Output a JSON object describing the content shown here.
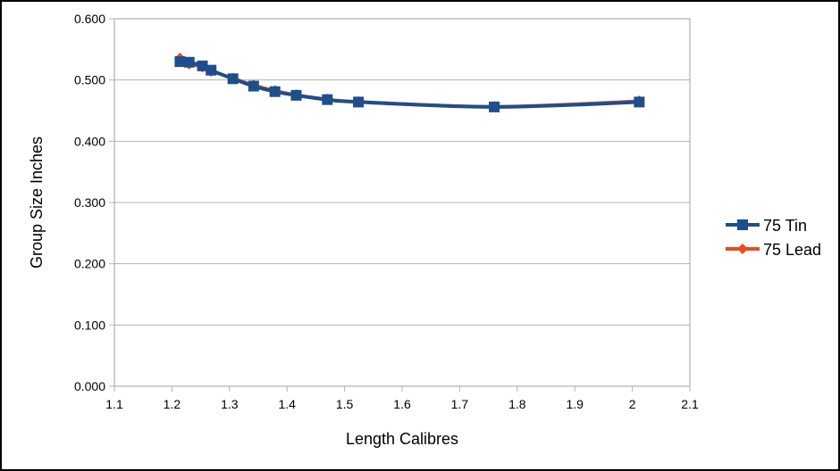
{
  "chart_data": {
    "type": "line",
    "title": "",
    "xlabel": "Length Calibres",
    "ylabel": "Group Size Inches",
    "xlim": [
      1.1,
      2.1
    ],
    "ylim": [
      0.0,
      0.6
    ],
    "x_ticks": [
      "1.1",
      "1.2",
      "1.3",
      "1.4",
      "1.5",
      "1.6",
      "1.7",
      "1.8",
      "1.9",
      "2",
      "2.1"
    ],
    "y_ticks": [
      "0.000",
      "0.100",
      "0.200",
      "0.300",
      "0.400",
      "0.500",
      "0.600"
    ],
    "grid": "horizontal",
    "legend_position": "right",
    "series": [
      {
        "name": "75 Tin",
        "color": "#1f4e8c",
        "marker": "square",
        "x": [
          1.214,
          1.23,
          1.253,
          1.268,
          1.306,
          1.342,
          1.379,
          1.416,
          1.47,
          1.524,
          1.76,
          2.012
        ],
        "y": [
          0.53,
          0.529,
          0.523,
          0.516,
          0.502,
          0.49,
          0.481,
          0.475,
          0.468,
          0.464,
          0.456,
          0.464
        ]
      },
      {
        "name": "75 Lead",
        "color": "#e84c1c",
        "marker": "diamond",
        "x": [
          1.214,
          1.23,
          1.253,
          1.268,
          1.306,
          1.342,
          1.379,
          1.416,
          1.47,
          1.524,
          1.76,
          2.012
        ],
        "y": [
          0.536,
          0.526,
          0.521,
          0.514,
          0.503,
          0.492,
          0.483,
          0.476,
          0.469,
          0.465,
          0.457,
          0.466
        ]
      }
    ]
  }
}
